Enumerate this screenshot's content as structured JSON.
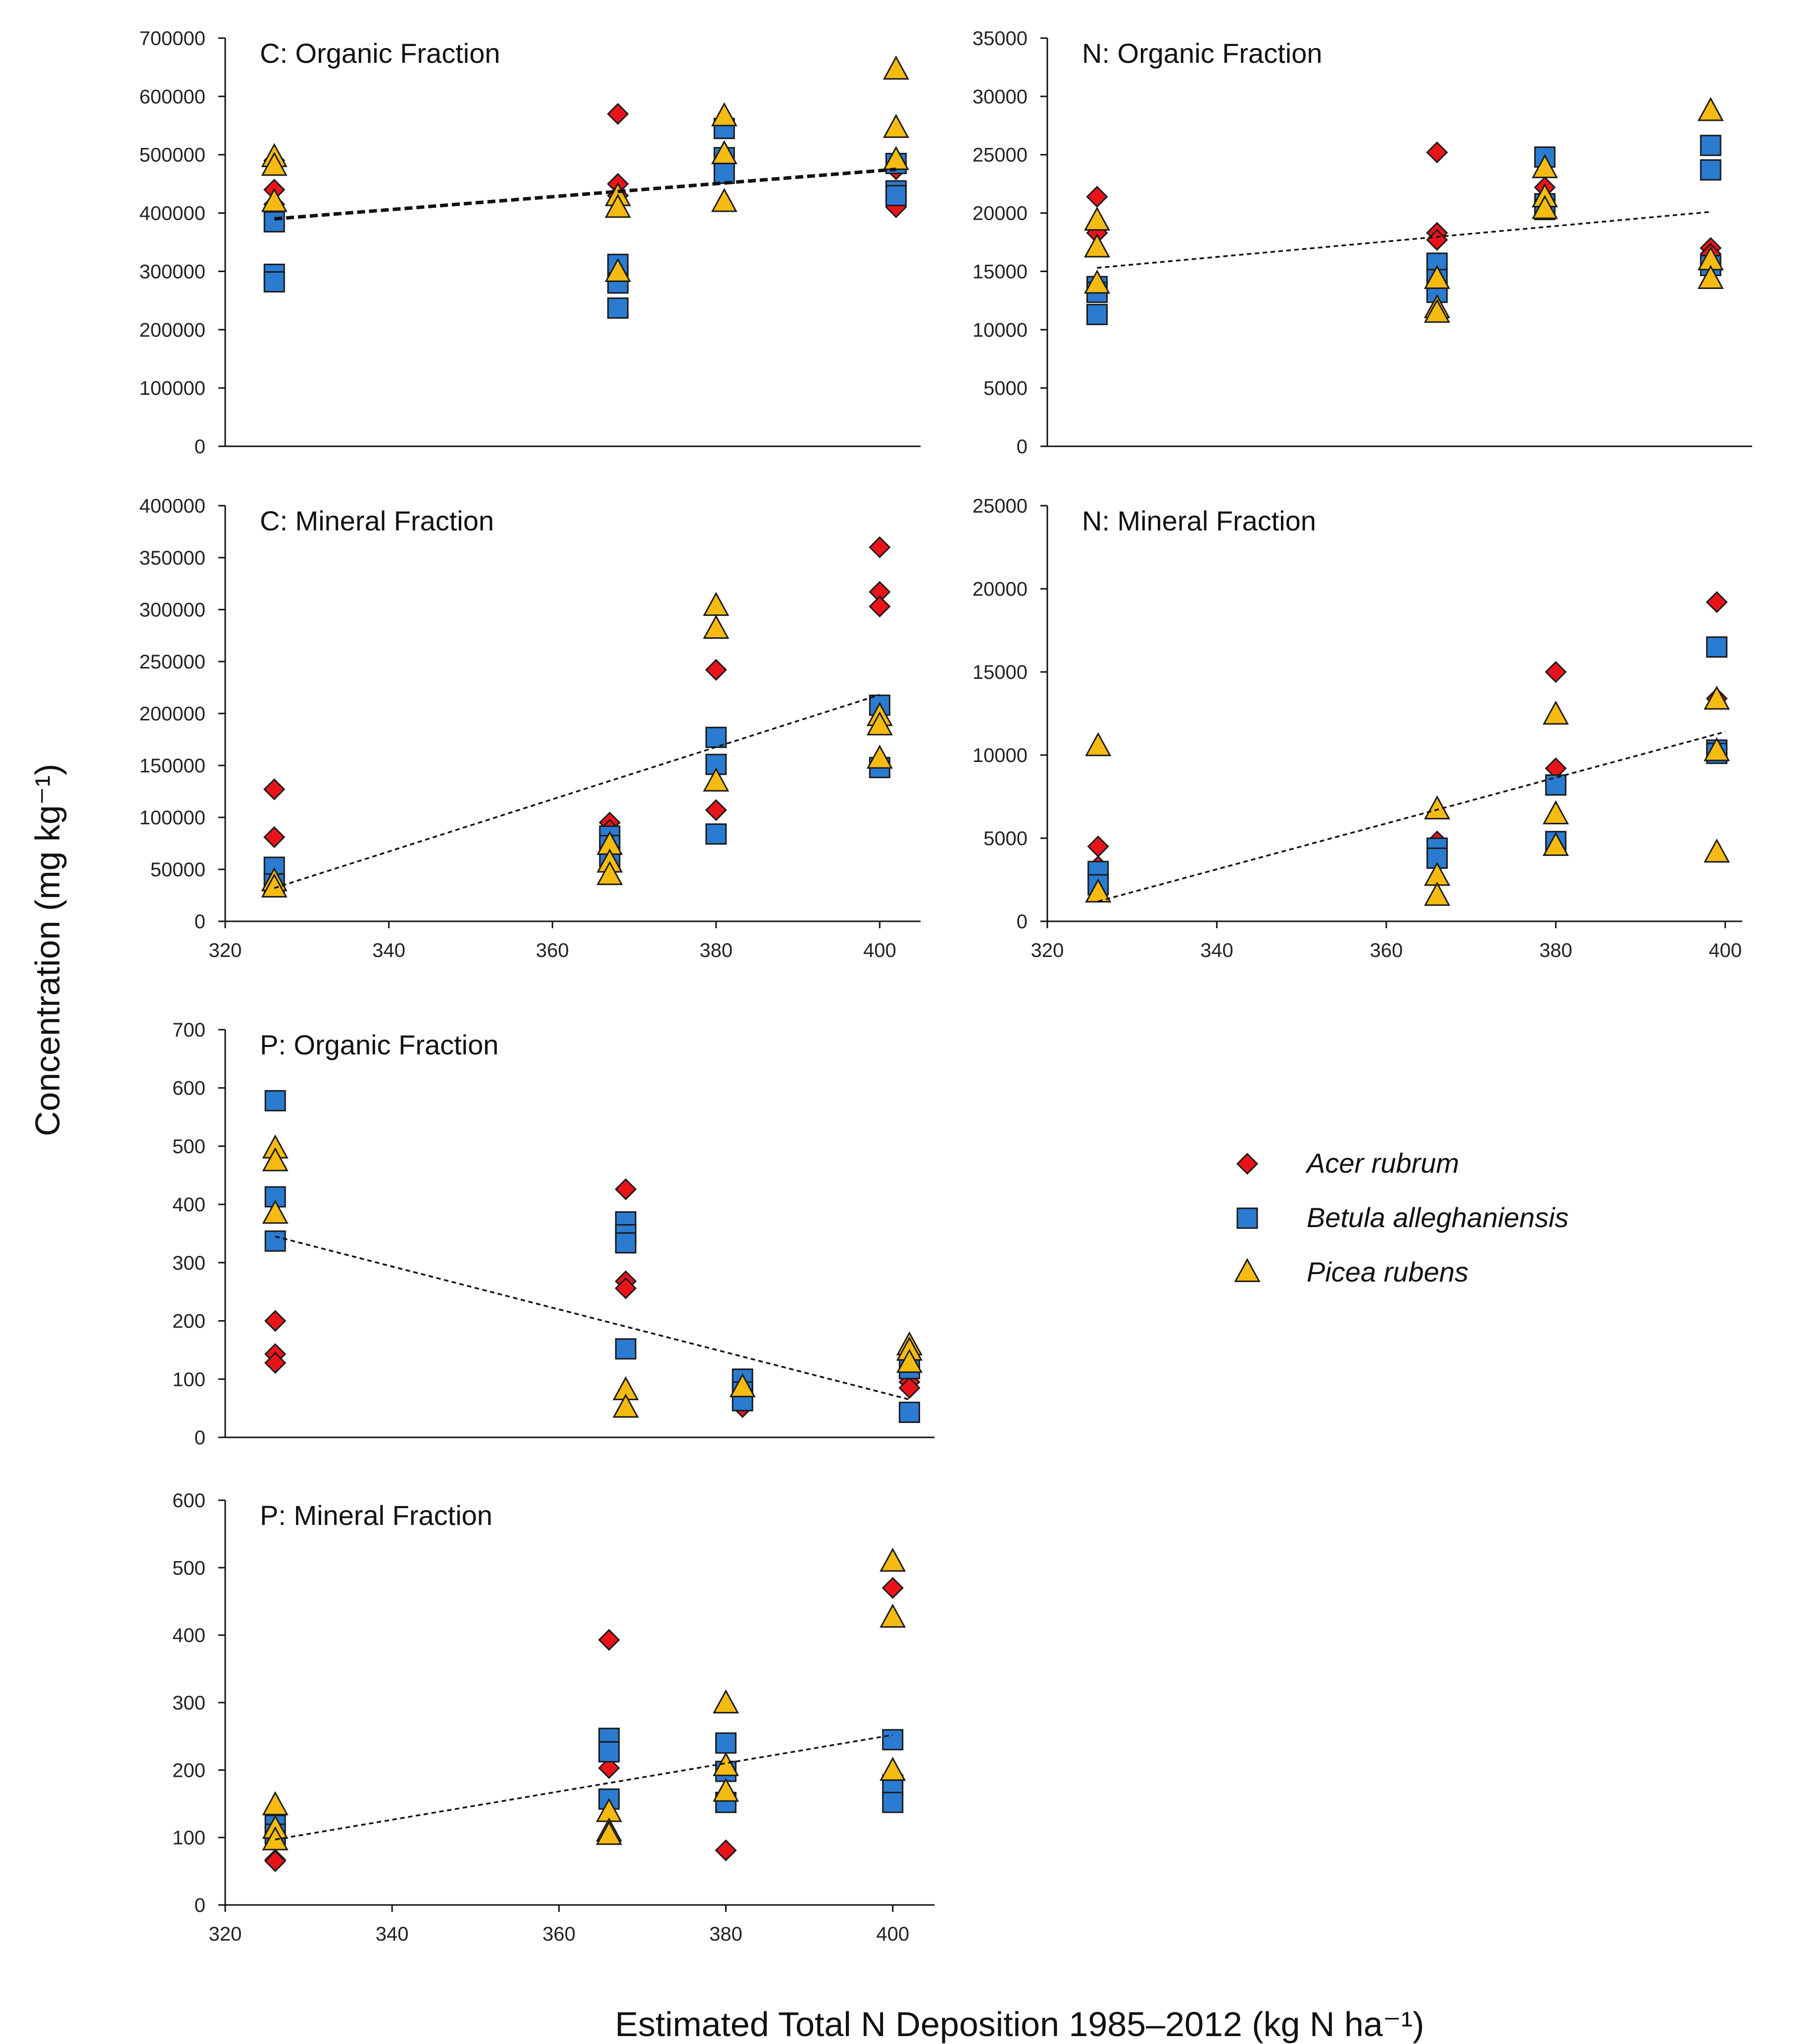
{
  "axis_labels": {
    "y": "Concentration (mg kg⁻¹)",
    "x": "Estimated Total N Deposition 1985–2012 (kg N ha⁻¹)"
  },
  "legend": [
    {
      "name": "Acer rubrum",
      "marker": "diamond",
      "color": "#e8141a"
    },
    {
      "name": "Betula alleghaniensis",
      "marker": "square",
      "color": "#2b7bd0"
    },
    {
      "name": "Picea rubens",
      "marker": "triangle",
      "color": "#f5bb12"
    }
  ],
  "chart_data": [
    {
      "type": "scatter",
      "title": "C: Organic Fraction",
      "ylim": [
        0,
        700000
      ],
      "yticks": [
        "0",
        "100000",
        "200000",
        "300000",
        "400000",
        "500000",
        "600000",
        "700000"
      ],
      "xlim": [
        320,
        405
      ],
      "xticks": [],
      "trend": {
        "x": [
          326,
          402
        ],
        "y": [
          390000,
          475000
        ],
        "bold": true
      },
      "series": [
        {
          "name": "Acer rubrum",
          "points": [
            [
              326,
              490000
            ],
            [
              326,
              440000
            ],
            [
              326,
              415000
            ],
            [
              368,
              570000
            ],
            [
              368,
              450000
            ],
            [
              368,
              430000
            ],
            [
              368,
              300000
            ],
            [
              381,
              500000
            ],
            [
              381,
              480000
            ],
            [
              402,
              475000
            ],
            [
              402,
              420000
            ],
            [
              402,
              410000
            ]
          ]
        },
        {
          "name": "Betula alleghaniensis",
          "points": [
            [
              326,
              385000
            ],
            [
              326,
              295000
            ],
            [
              326,
              282000
            ],
            [
              368,
              312000
            ],
            [
              368,
              280000
            ],
            [
              368,
              237000
            ],
            [
              381,
              545000
            ],
            [
              381,
              495000
            ],
            [
              381,
              468000
            ],
            [
              402,
              485000
            ],
            [
              402,
              438000
            ],
            [
              402,
              430000
            ]
          ]
        },
        {
          "name": "Picea rubens",
          "points": [
            [
              326,
              495000
            ],
            [
              326,
              480000
            ],
            [
              326,
              418000
            ],
            [
              368,
              428000
            ],
            [
              368,
              408000
            ],
            [
              368,
              298000
            ],
            [
              381,
              565000
            ],
            [
              381,
              500000
            ],
            [
              381,
              418000
            ],
            [
              402,
              645000
            ],
            [
              402,
              545000
            ],
            [
              402,
              490000
            ]
          ]
        }
      ]
    },
    {
      "type": "scatter",
      "title": "N: Organic Fraction",
      "ylim": [
        0,
        35000
      ],
      "yticks": [
        "0",
        "5000",
        "10000",
        "15000",
        "20000",
        "25000",
        "30000",
        "35000"
      ],
      "xlim": [
        320,
        405
      ],
      "xticks": [],
      "trend": {
        "x": [
          326,
          400
        ],
        "y": [
          15300,
          20100
        ],
        "bold": false
      },
      "series": [
        {
          "name": "Acer rubrum",
          "points": [
            [
              326,
              21400
            ],
            [
              326,
              18300
            ],
            [
              367,
              25200
            ],
            [
              367,
              18300
            ],
            [
              367,
              17700
            ],
            [
              380,
              22200
            ],
            [
              380,
              21300
            ],
            [
              400,
              17000
            ],
            [
              400,
              16500
            ]
          ]
        },
        {
          "name": "Betula alleghaniensis",
          "points": [
            [
              326,
              13700
            ],
            [
              326,
              13200
            ],
            [
              326,
              11300
            ],
            [
              367,
              15700
            ],
            [
              367,
              14300
            ],
            [
              367,
              13200
            ],
            [
              380,
              24800
            ],
            [
              380,
              20800
            ],
            [
              380,
              20300
            ],
            [
              400,
              25800
            ],
            [
              400,
              23700
            ],
            [
              400,
              15500
            ]
          ]
        },
        {
          "name": "Picea rubens",
          "points": [
            [
              326,
              19300
            ],
            [
              326,
              17000
            ],
            [
              326,
              13900
            ],
            [
              367,
              14300
            ],
            [
              367,
              11800
            ],
            [
              367,
              11400
            ],
            [
              380,
              23800
            ],
            [
              380,
              21300
            ],
            [
              380,
              20300
            ],
            [
              400,
              28700
            ],
            [
              400,
              15900
            ],
            [
              400,
              14300
            ]
          ]
        }
      ]
    },
    {
      "type": "scatter",
      "title": "C: Mineral Fraction",
      "ylim": [
        0,
        400000
      ],
      "yticks": [
        "0",
        "50000",
        "100000",
        "150000",
        "200000",
        "250000",
        "300000",
        "350000",
        "400000"
      ],
      "xlim": [
        320,
        405
      ],
      "xticks": [
        "320",
        "340",
        "360",
        "380",
        "400"
      ],
      "trend": {
        "x": [
          326,
          400
        ],
        "y": [
          32000,
          218000
        ],
        "bold": false
      },
      "series": [
        {
          "name": "Acer rubrum",
          "points": [
            [
              326,
              127000
            ],
            [
              326,
              81000
            ],
            [
              326,
              36000
            ],
            [
              367,
              95000
            ],
            [
              367,
              88000
            ],
            [
              380,
              242000
            ],
            [
              380,
              107000
            ],
            [
              400,
              360000
            ],
            [
              400,
              317000
            ],
            [
              400,
              303000
            ]
          ]
        },
        {
          "name": "Betula alleghaniensis",
          "points": [
            [
              326,
              52000
            ],
            [
              326,
              36000
            ],
            [
              367,
              82000
            ],
            [
              367,
              73000
            ],
            [
              367,
              62000
            ],
            [
              380,
              177000
            ],
            [
              380,
              151000
            ],
            [
              380,
              84000
            ],
            [
              400,
              208000
            ],
            [
              400,
              148000
            ]
          ]
        },
        {
          "name": "Picea rubens",
          "points": [
            [
              326,
              38000
            ],
            [
              326,
              32000
            ],
            [
              367,
              73000
            ],
            [
              367,
              56000
            ],
            [
              367,
              44000
            ],
            [
              380,
              303000
            ],
            [
              380,
              281000
            ],
            [
              380,
              134000
            ],
            [
              400,
              197000
            ],
            [
              400,
              188000
            ],
            [
              400,
              156000
            ]
          ]
        }
      ]
    },
    {
      "type": "scatter",
      "title": "N: Mineral Fraction",
      "ylim": [
        0,
        25000
      ],
      "yticks": [
        "0",
        "5000",
        "10000",
        "15000",
        "20000",
        "25000"
      ],
      "xlim": [
        320,
        402
      ],
      "xticks": [
        "320",
        "340",
        "360",
        "380",
        "400"
      ],
      "trend": {
        "x": [
          326,
          400
        ],
        "y": [
          1200,
          11400
        ],
        "bold": false
      },
      "series": [
        {
          "name": "Acer rubrum",
          "points": [
            [
              326,
              4500
            ],
            [
              326,
              3300
            ],
            [
              326,
              2000
            ],
            [
              366,
              4800
            ],
            [
              366,
              3800
            ],
            [
              380,
              15000
            ],
            [
              380,
              9200
            ],
            [
              399,
              19200
            ],
            [
              399,
              16500
            ],
            [
              399,
              13400
            ]
          ]
        },
        {
          "name": "Betula alleghaniensis",
          "points": [
            [
              326,
              3000
            ],
            [
              326,
              2200
            ],
            [
              366,
              4400
            ],
            [
              366,
              3800
            ],
            [
              380,
              8200
            ],
            [
              380,
              4800
            ],
            [
              399,
              16500
            ],
            [
              399,
              10300
            ],
            [
              399,
              10100
            ]
          ]
        },
        {
          "name": "Picea rubens",
          "points": [
            [
              326,
              10500
            ],
            [
              326,
              1700
            ],
            [
              366,
              6700
            ],
            [
              366,
              2700
            ],
            [
              366,
              1500
            ],
            [
              380,
              12400
            ],
            [
              380,
              6400
            ],
            [
              380,
              4500
            ],
            [
              399,
              13300
            ],
            [
              399,
              10200
            ],
            [
              399,
              4100
            ]
          ]
        }
      ]
    },
    {
      "type": "scatter",
      "title": "P: Organic Fraction",
      "ylim": [
        0,
        700
      ],
      "yticks": [
        "0",
        "100",
        "200",
        "300",
        "400",
        "500",
        "600",
        "700"
      ],
      "xlim": [
        320,
        405
      ],
      "xticks": [],
      "trend": {
        "x": [
          326,
          402
        ],
        "y": [
          345,
          65
        ],
        "bold": false
      },
      "series": [
        {
          "name": "Acer rubrum",
          "points": [
            [
              326,
              200
            ],
            [
              326,
              143
            ],
            [
              326,
              128
            ],
            [
              368,
              426
            ],
            [
              368,
              268
            ],
            [
              368,
              256
            ],
            [
              382,
              75
            ],
            [
              382,
              52
            ],
            [
              402,
              95
            ],
            [
              402,
              85
            ]
          ]
        },
        {
          "name": "Betula alleghaniensis",
          "points": [
            [
              326,
              578
            ],
            [
              326,
              413
            ],
            [
              326,
              337
            ],
            [
              368,
              370
            ],
            [
              368,
              348
            ],
            [
              368,
              334
            ],
            [
              368,
              152
            ],
            [
              382,
              100
            ],
            [
              382,
              78
            ],
            [
              382,
              63
            ],
            [
              402,
              118
            ],
            [
              402,
              43
            ]
          ]
        },
        {
          "name": "Picea rubens",
          "points": [
            [
              326,
              495
            ],
            [
              326,
              473
            ],
            [
              326,
              383
            ],
            [
              368,
              80
            ],
            [
              368,
              50
            ],
            [
              382,
              85
            ],
            [
              402,
              157
            ],
            [
              402,
              148
            ],
            [
              402,
              127
            ]
          ]
        }
      ]
    },
    {
      "type": "scatter",
      "title": "P: Mineral Fraction",
      "ylim": [
        0,
        600
      ],
      "yticks": [
        "0",
        "100",
        "200",
        "300",
        "400",
        "500",
        "600"
      ],
      "xlim": [
        320,
        405
      ],
      "xticks": [
        "320",
        "340",
        "360",
        "380",
        "400"
      ],
      "trend": {
        "x": [
          326,
          400
        ],
        "y": [
          97,
          252
        ],
        "bold": false
      },
      "series": [
        {
          "name": "Acer rubrum",
          "points": [
            [
              326,
              67
            ],
            [
              326,
              65
            ],
            [
              366,
              393
            ],
            [
              366,
              203
            ],
            [
              380,
              81
            ],
            [
              400,
              470
            ]
          ]
        },
        {
          "name": "Betula alleghaniensis",
          "points": [
            [
              326,
              118
            ],
            [
              326,
              105
            ],
            [
              366,
              247
            ],
            [
              366,
              227
            ],
            [
              366,
              157
            ],
            [
              380,
              240
            ],
            [
              380,
              198
            ],
            [
              380,
              152
            ],
            [
              400,
              245
            ],
            [
              400,
              178
            ],
            [
              400,
              152
            ]
          ]
        },
        {
          "name": "Picea rubens",
          "points": [
            [
              326,
              147
            ],
            [
              326,
              112
            ],
            [
              326,
              95
            ],
            [
              366,
              137
            ],
            [
              366,
              108
            ],
            [
              366,
              103
            ],
            [
              380,
              298
            ],
            [
              380,
              205
            ],
            [
              380,
              167
            ],
            [
              400,
              508
            ],
            [
              400,
              425
            ],
            [
              400,
              198
            ]
          ]
        }
      ]
    }
  ]
}
